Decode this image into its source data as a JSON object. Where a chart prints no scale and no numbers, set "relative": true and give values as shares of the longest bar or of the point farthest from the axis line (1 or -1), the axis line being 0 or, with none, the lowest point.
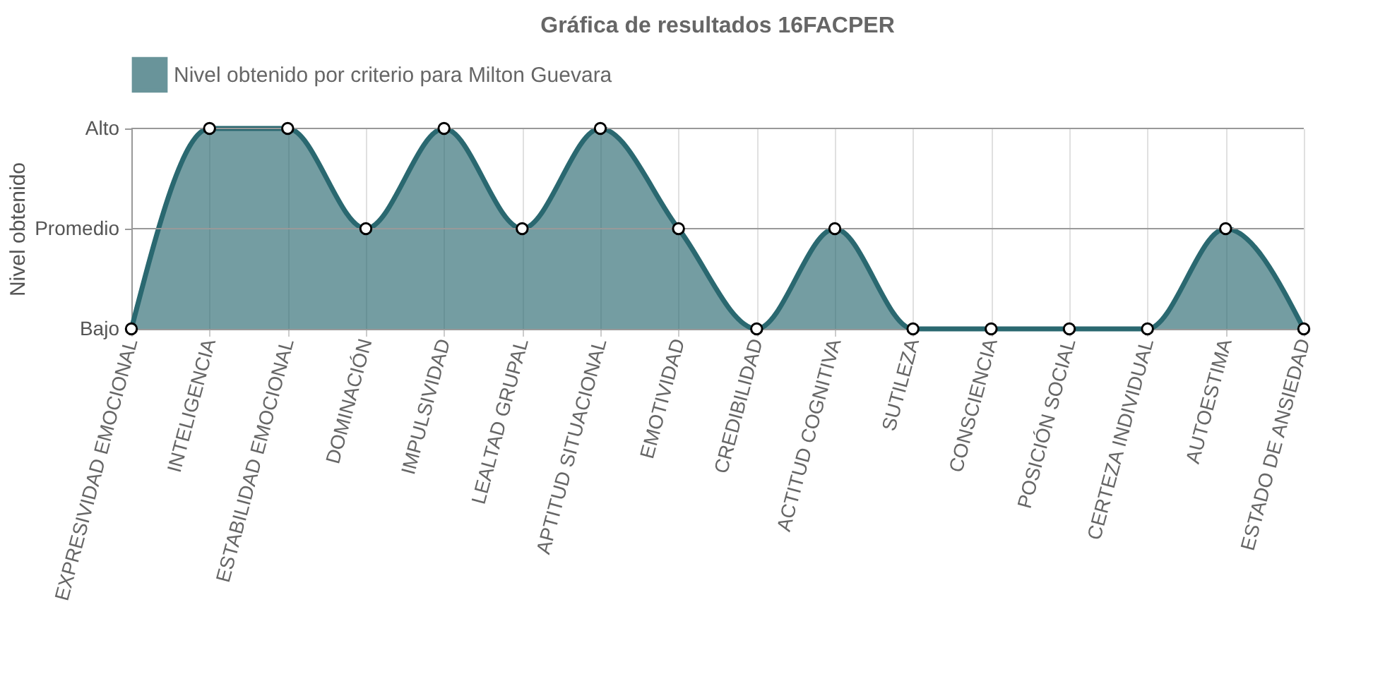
{
  "chart_data": {
    "type": "area",
    "title": "Gráfica de resultados 16FACPER",
    "ylabel": "Nivel obtenido",
    "categories": [
      "EXPRESIVIDAD EMOCIONAL",
      "INTELIGENCIA",
      "ESTABILIDAD EMOCIONAL",
      "DOMINACIÓN",
      "IMPULSIVIDAD",
      "LEALTAD GRUPAL",
      "APTITUD SITUACIONAL",
      "EMOTIVIDAD",
      "CREDIBILIDAD",
      "ACTITUD COGNITIVA",
      "SUTILEZA",
      "CONSCIENCIA",
      "POSICIÓN SOCIAL",
      "CERTEZA INDIVIDUAL",
      "AUTOESTIMA",
      "ESTADO DE ANSIEDAD"
    ],
    "series": [
      {
        "name": "Nivel obtenido por criterio para Milton Guevara",
        "color": "#2a6870",
        "values": [
          0,
          1,
          1,
          0.5,
          1,
          0.5,
          1,
          0.5,
          0,
          0.5,
          0,
          0,
          0,
          0,
          0.5,
          0
        ]
      }
    ],
    "relative": true,
    "annotations": [
      "Bajo",
      "Promedio",
      "Alto"
    ],
    "ref_lines": [
      {
        "axis": "y",
        "value": 0.5,
        "color": "#999999"
      },
      {
        "axis": "y",
        "value": 1,
        "color": "#999999"
      }
    ],
    "grid": "x",
    "legend": "top",
    "marker": "circle",
    "line_style": "solid"
  }
}
